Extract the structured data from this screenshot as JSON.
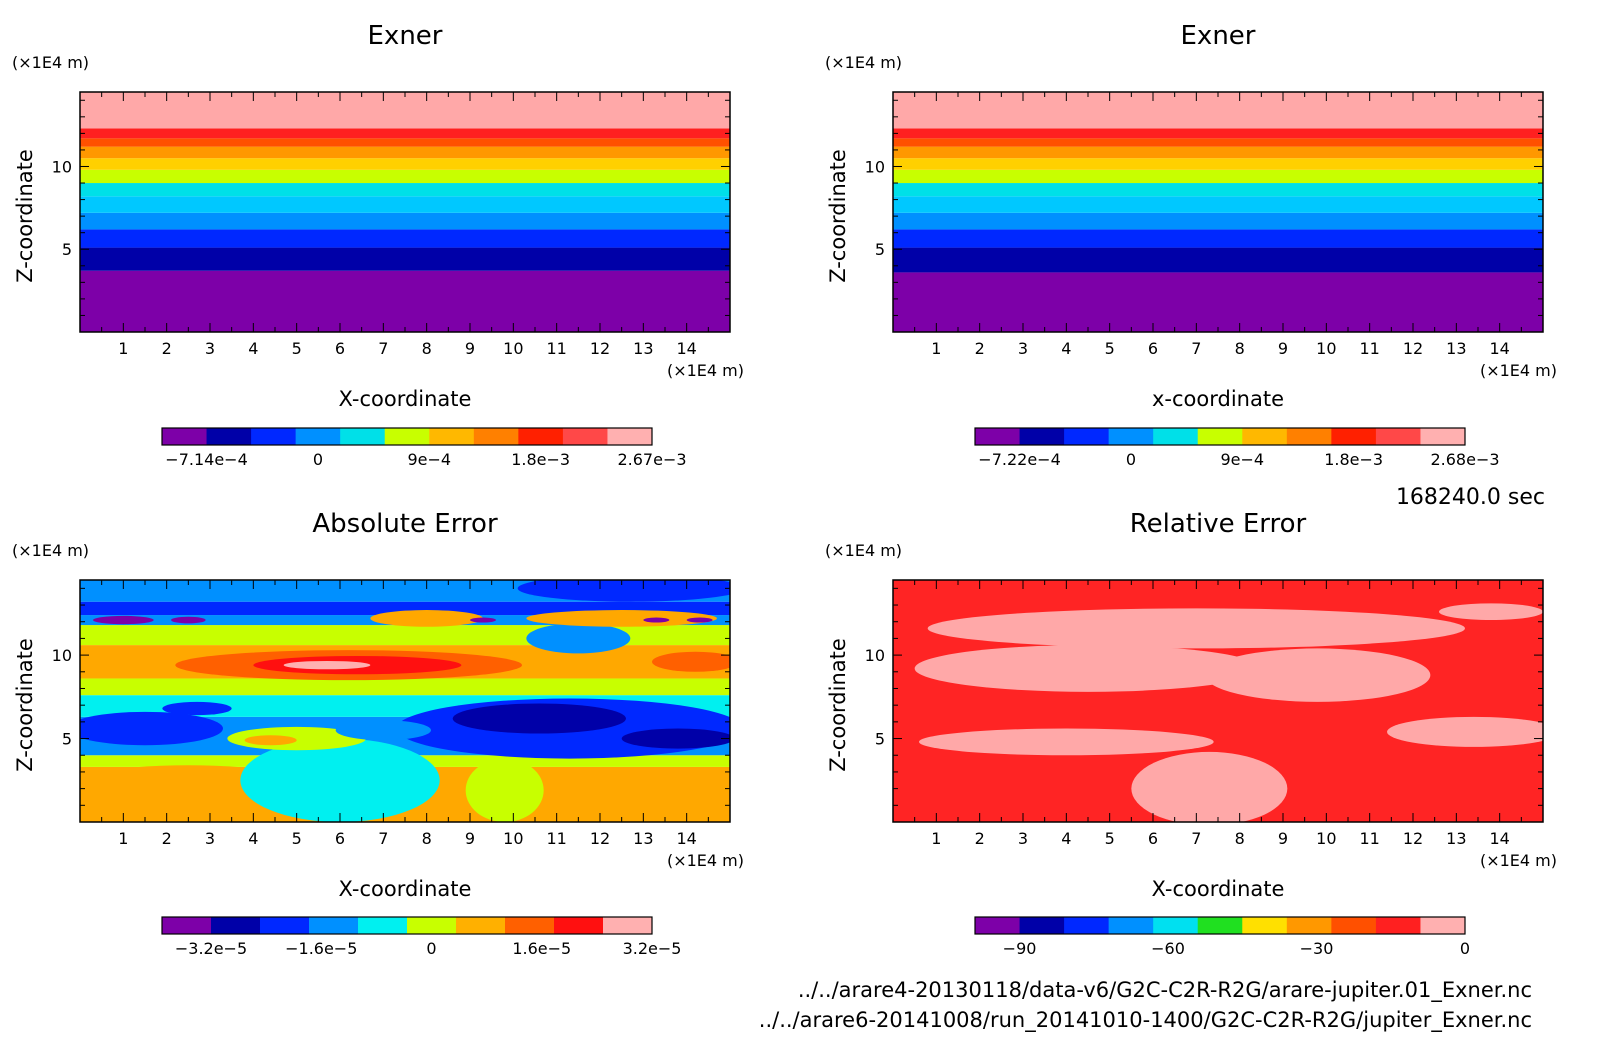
{
  "time_label": "168240.0 sec",
  "footer": {
    "file1": "../../arare4-20130118/data-v6/G2C-C2R-R2G/arare-jupiter.01_Exner.nc",
    "file2": "../../arare6-20141008/run_20141010-1400/G2C-C2R-R2G/jupiter_Exner.nc"
  },
  "chart_data": [
    {
      "type": "heatmap",
      "title": "Exner",
      "xlabel": "X-coordinate",
      "ylabel": "Z-coordinate",
      "x_unit": "(×1E4 m)",
      "y_unit": "(×1E4 m)",
      "xlim": [
        0,
        15
      ],
      "ylim": [
        0,
        14.5
      ],
      "x_ticks": [
        1,
        2,
        3,
        4,
        5,
        6,
        7,
        8,
        9,
        10,
        11,
        12,
        13,
        14
      ],
      "y_ticks": [
        5,
        10
      ],
      "colorbar": {
        "colors": [
          "#7d00a8",
          "#0000a8",
          "#0028ff",
          "#0090ff",
          "#00e0e8",
          "#c8ff00",
          "#ffb800",
          "#ff8000",
          "#ff2000",
          "#ff4848",
          "#ffb0b0"
        ],
        "labels": [
          "−7.14e−4",
          "0",
          "9e−4",
          "1.8e−3",
          "2.67e−3"
        ]
      },
      "bands": [
        {
          "z0": 0,
          "z1": 3.7,
          "color": "#7d00a8"
        },
        {
          "z0": 3.7,
          "z1": 5.1,
          "color": "#0000a8"
        },
        {
          "z0": 5.1,
          "z1": 6.2,
          "color": "#0028ff"
        },
        {
          "z0": 6.2,
          "z1": 7.2,
          "color": "#0090ff"
        },
        {
          "z0": 7.2,
          "z1": 8.2,
          "color": "#00c8ff"
        },
        {
          "z0": 8.2,
          "z1": 9.0,
          "color": "#00e0e8"
        },
        {
          "z0": 9.0,
          "z1": 9.8,
          "color": "#c8ff00"
        },
        {
          "z0": 9.8,
          "z1": 10.5,
          "color": "#ffd000"
        },
        {
          "z0": 10.5,
          "z1": 11.2,
          "color": "#ff9800"
        },
        {
          "z0": 11.2,
          "z1": 11.7,
          "color": "#ff5000"
        },
        {
          "z0": 11.7,
          "z1": 12.3,
          "color": "#ff2020"
        },
        {
          "z0": 12.3,
          "z1": 14.5,
          "color": "#ffa8a8"
        }
      ]
    },
    {
      "type": "heatmap",
      "title": "Exner",
      "xlabel": "x-coordinate",
      "ylabel": "Z-coordinate",
      "x_unit": "(×1E4 m)",
      "y_unit": "(×1E4 m)",
      "xlim": [
        0,
        15
      ],
      "ylim": [
        0,
        14.5
      ],
      "x_ticks": [
        1,
        2,
        3,
        4,
        5,
        6,
        7,
        8,
        9,
        10,
        11,
        12,
        13,
        14
      ],
      "y_ticks": [
        5,
        10
      ],
      "colorbar": {
        "colors": [
          "#7d00a8",
          "#0000a8",
          "#0028ff",
          "#0090ff",
          "#00e0e8",
          "#c8ff00",
          "#ffb800",
          "#ff8000",
          "#ff2000",
          "#ff4848",
          "#ffb0b0"
        ],
        "labels": [
          "−7.22e−4",
          "0",
          "9e−4",
          "1.8e−3",
          "2.68e−3"
        ]
      },
      "bands": [
        {
          "z0": 0,
          "z1": 3.6,
          "color": "#7d00a8"
        },
        {
          "z0": 3.6,
          "z1": 5.1,
          "color": "#0000a8"
        },
        {
          "z0": 5.1,
          "z1": 6.2,
          "color": "#0028ff"
        },
        {
          "z0": 6.2,
          "z1": 7.2,
          "color": "#0090ff"
        },
        {
          "z0": 7.2,
          "z1": 8.2,
          "color": "#00c8ff"
        },
        {
          "z0": 8.2,
          "z1": 9.0,
          "color": "#00e0e8"
        },
        {
          "z0": 9.0,
          "z1": 9.8,
          "color": "#c8ff00"
        },
        {
          "z0": 9.8,
          "z1": 10.5,
          "color": "#ffd000"
        },
        {
          "z0": 10.5,
          "z1": 11.2,
          "color": "#ff9800"
        },
        {
          "z0": 11.2,
          "z1": 11.7,
          "color": "#ff5000"
        },
        {
          "z0": 11.7,
          "z1": 12.3,
          "color": "#ff2020"
        },
        {
          "z0": 12.3,
          "z1": 14.5,
          "color": "#ffa8a8"
        }
      ]
    },
    {
      "type": "heatmap",
      "title": "Absolute Error",
      "xlabel": "X-coordinate",
      "ylabel": "Z-coordinate",
      "x_unit": "(×1E4 m)",
      "y_unit": "(×1E4 m)",
      "xlim": [
        0,
        15
      ],
      "ylim": [
        0,
        14.5
      ],
      "x_ticks": [
        1,
        2,
        3,
        4,
        5,
        6,
        7,
        8,
        9,
        10,
        11,
        12,
        13,
        14
      ],
      "y_ticks": [
        5,
        10
      ],
      "colorbar": {
        "colors": [
          "#7d00a8",
          "#0000a8",
          "#0028ff",
          "#0090ff",
          "#00f0f0",
          "#c8ff00",
          "#ffb000",
          "#ff6000",
          "#ff1010",
          "#ffb0b0"
        ],
        "labels": [
          "−3.2e−5",
          "−1.6e−5",
          "0",
          "1.6e−5",
          "3.2e−5"
        ]
      },
      "bands": [
        {
          "z0": 0,
          "z1": 3.3,
          "color": "#ffa800"
        },
        {
          "z0": 3.3,
          "z1": 4.0,
          "color": "#c8ff00"
        },
        {
          "z0": 4.0,
          "z1": 6.3,
          "color": "#0090ff"
        },
        {
          "z0": 6.3,
          "z1": 7.6,
          "color": "#00f0f0"
        },
        {
          "z0": 7.6,
          "z1": 8.6,
          "color": "#c8ff00"
        },
        {
          "z0": 8.6,
          "z1": 10.6,
          "color": "#ffa800"
        },
        {
          "z0": 10.6,
          "z1": 11.8,
          "color": "#c8ff00"
        },
        {
          "z0": 11.8,
          "z1": 12.4,
          "color": "#0090ff"
        },
        {
          "z0": 12.4,
          "z1": 13.2,
          "color": "#0028ff"
        },
        {
          "z0": 13.2,
          "z1": 14.5,
          "color": "#0090ff"
        }
      ],
      "blobs": [
        {
          "cx": 2.5,
          "cy": 1.8,
          "rx": 3.2,
          "ry": 1.6,
          "color": "#ffa800"
        },
        {
          "cx": 12.0,
          "cy": 1.6,
          "rx": 2.6,
          "ry": 1.4,
          "color": "#ffa800"
        },
        {
          "cx": 6.0,
          "cy": 2.5,
          "rx": 2.3,
          "ry": 2.5,
          "color": "#00f0f0"
        },
        {
          "cx": 9.8,
          "cy": 1.9,
          "rx": 0.9,
          "ry": 1.9,
          "color": "#c8ff00"
        },
        {
          "cx": 11.3,
          "cy": 5.6,
          "rx": 4.0,
          "ry": 1.8,
          "color": "#0028ff"
        },
        {
          "cx": 10.6,
          "cy": 6.2,
          "rx": 2.0,
          "ry": 0.9,
          "color": "#0000a8"
        },
        {
          "cx": 13.8,
          "cy": 5.0,
          "rx": 1.3,
          "ry": 0.6,
          "color": "#0000a8"
        },
        {
          "cx": 1.5,
          "cy": 5.6,
          "rx": 1.8,
          "ry": 1.0,
          "color": "#0028ff"
        },
        {
          "cx": 2.7,
          "cy": 6.8,
          "rx": 0.8,
          "ry": 0.4,
          "color": "#0028ff"
        },
        {
          "cx": 5.0,
          "cy": 5.0,
          "rx": 1.6,
          "ry": 0.7,
          "color": "#c8ff00"
        },
        {
          "cx": 4.4,
          "cy": 4.9,
          "rx": 0.6,
          "ry": 0.3,
          "color": "#ffa800"
        },
        {
          "cx": 7.0,
          "cy": 5.5,
          "rx": 1.1,
          "ry": 0.6,
          "color": "#0090ff"
        },
        {
          "cx": 6.2,
          "cy": 9.4,
          "rx": 4.0,
          "ry": 0.9,
          "color": "#ff6000"
        },
        {
          "cx": 6.4,
          "cy": 9.4,
          "rx": 2.4,
          "ry": 0.55,
          "color": "#ff1010"
        },
        {
          "cx": 5.7,
          "cy": 9.4,
          "rx": 1.0,
          "ry": 0.25,
          "color": "#ffb0b0"
        },
        {
          "cx": 14.2,
          "cy": 9.6,
          "rx": 1.0,
          "ry": 0.6,
          "color": "#ff6000"
        },
        {
          "cx": 11.5,
          "cy": 11.0,
          "rx": 1.2,
          "ry": 0.9,
          "color": "#0090ff"
        },
        {
          "cx": 8.0,
          "cy": 12.2,
          "rx": 1.3,
          "ry": 0.5,
          "color": "#ffa800"
        },
        {
          "cx": 12.5,
          "cy": 12.2,
          "rx": 2.2,
          "ry": 0.5,
          "color": "#ffa800"
        },
        {
          "cx": 12.7,
          "cy": 14.0,
          "rx": 2.6,
          "ry": 0.8,
          "color": "#0028ff"
        },
        {
          "cx": 1.0,
          "cy": 12.1,
          "rx": 0.7,
          "ry": 0.25,
          "color": "#7d00a8"
        },
        {
          "cx": 2.5,
          "cy": 12.1,
          "rx": 0.4,
          "ry": 0.2,
          "color": "#7d00a8"
        },
        {
          "cx": 9.3,
          "cy": 12.1,
          "rx": 0.3,
          "ry": 0.15,
          "color": "#7d00a8"
        },
        {
          "cx": 13.3,
          "cy": 12.1,
          "rx": 0.3,
          "ry": 0.15,
          "color": "#7d00a8"
        },
        {
          "cx": 14.3,
          "cy": 12.1,
          "rx": 0.3,
          "ry": 0.15,
          "color": "#7d00a8"
        }
      ]
    },
    {
      "type": "heatmap",
      "title": "Relative Error",
      "xlabel": "X-coordinate",
      "ylabel": "Z-coordinate",
      "x_unit": "(×1E4 m)",
      "y_unit": "(×1E4 m)",
      "xlim": [
        0,
        15
      ],
      "ylim": [
        0,
        14.5
      ],
      "x_ticks": [
        1,
        2,
        3,
        4,
        5,
        6,
        7,
        8,
        9,
        10,
        11,
        12,
        13,
        14
      ],
      "y_ticks": [
        5,
        10
      ],
      "colorbar": {
        "colors": [
          "#7d00a8",
          "#0000a8",
          "#0028ff",
          "#0090ff",
          "#00e0f0",
          "#20e020",
          "#ffe000",
          "#ff9800",
          "#ff5000",
          "#ff2020",
          "#ffb0b0"
        ],
        "labels": [
          "−90",
          "−60",
          "−30",
          "0"
        ]
      },
      "bands": [
        {
          "z0": 0,
          "z1": 14.5,
          "color": "#ff2424"
        }
      ],
      "blobs": [
        {
          "cx": 7.0,
          "cy": 11.6,
          "rx": 6.2,
          "ry": 1.2,
          "color": "#ffa8a8"
        },
        {
          "cx": 4.5,
          "cy": 9.2,
          "rx": 4.0,
          "ry": 1.4,
          "color": "#ffa8a8"
        },
        {
          "cx": 9.8,
          "cy": 8.8,
          "rx": 2.6,
          "ry": 1.6,
          "color": "#ffa8a8"
        },
        {
          "cx": 4.0,
          "cy": 4.8,
          "rx": 3.4,
          "ry": 0.8,
          "color": "#ffa8a8"
        },
        {
          "cx": 13.4,
          "cy": 5.4,
          "rx": 2.0,
          "ry": 0.9,
          "color": "#ffa8a8"
        },
        {
          "cx": 7.3,
          "cy": 2.0,
          "rx": 1.8,
          "ry": 2.2,
          "color": "#ffa8a8"
        },
        {
          "cx": 13.8,
          "cy": 12.6,
          "rx": 1.2,
          "ry": 0.5,
          "color": "#ffa8a8"
        }
      ]
    }
  ]
}
